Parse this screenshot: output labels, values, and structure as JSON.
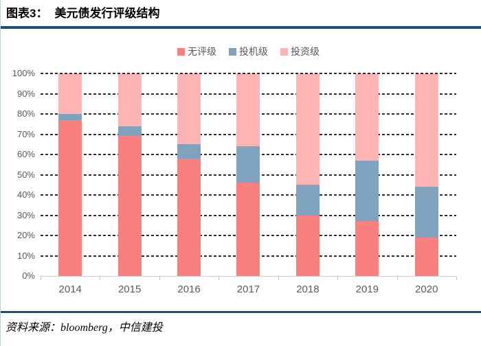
{
  "header": {
    "label": "图表3：",
    "title": "美元债发行评级结构"
  },
  "colors": {
    "accent_rule": "#1B4E7E",
    "unrated": "#FA8080",
    "speculative": "#7FA2BE",
    "investment": "#FEB3B4",
    "gridline": "#2b2b2b",
    "axis": "#cfcfcf",
    "label_gray": "#595959"
  },
  "chart_data": {
    "type": "bar",
    "subtype": "stacked-100-percent",
    "title": "美元债发行评级结构",
    "categories": [
      "2014",
      "2015",
      "2016",
      "2017",
      "2018",
      "2019",
      "2020"
    ],
    "series": [
      {
        "name": "无评级",
        "key": "unrated",
        "color": "#FA8080",
        "values": [
          77,
          69,
          58,
          46,
          30,
          27,
          19
        ]
      },
      {
        "name": "投机级",
        "key": "speculative",
        "color": "#7FA2BE",
        "values": [
          3,
          5,
          7,
          18,
          15,
          30,
          25
        ]
      },
      {
        "name": "投资级",
        "key": "investment",
        "color": "#FEB3B4",
        "values": [
          20,
          26,
          35,
          36,
          55,
          43,
          56
        ]
      }
    ],
    "xlabel": "",
    "ylabel": "",
    "ylim": [
      0,
      100
    ],
    "yticks": [
      "0%",
      "10%",
      "20%",
      "30%",
      "40%",
      "50%",
      "60%",
      "70%",
      "80%",
      "90%",
      "100%"
    ],
    "grid": "horizontal-dashed",
    "legend_position": "top-center"
  },
  "source": {
    "text": "资料来源：bloomberg，中信建投"
  }
}
